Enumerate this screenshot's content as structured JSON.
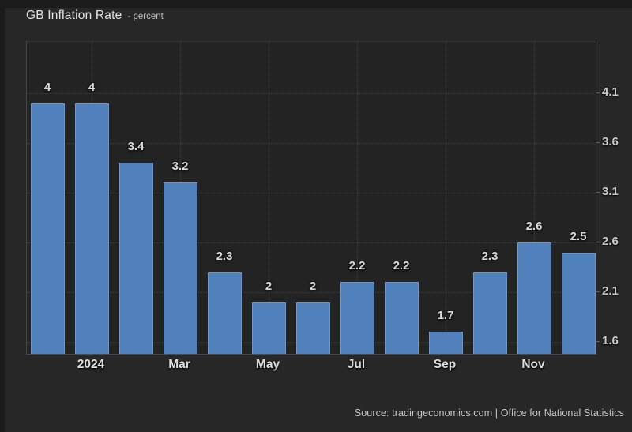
{
  "header": {
    "title": "GB Inflation Rate",
    "subtitle": "- percent"
  },
  "footer": {
    "source": "Source: tradingeconomics.com | Office for National Statistics"
  },
  "chart_data": {
    "type": "bar",
    "title": "GB Inflation Rate",
    "unit_label": "percent",
    "values": [
      4,
      4,
      3.4,
      3.2,
      2.3,
      2,
      2,
      2.2,
      2.2,
      1.7,
      2.3,
      2.6,
      2.5
    ],
    "bar_labels": [
      "4",
      "4",
      "3.4",
      "3.2",
      "2.3",
      "2",
      "2",
      "2.2",
      "2.2",
      "1.7",
      "2.3",
      "2.6",
      "2.5"
    ],
    "x_ticks": [
      {
        "bar_index": 1,
        "label": "2024"
      },
      {
        "bar_index": 3,
        "label": "Mar"
      },
      {
        "bar_index": 5,
        "label": "May"
      },
      {
        "bar_index": 7,
        "label": "Jul"
      },
      {
        "bar_index": 9,
        "label": "Sep"
      },
      {
        "bar_index": 11,
        "label": "Nov"
      }
    ],
    "y_ticks": [
      "4.1",
      "3.6",
      "3.1",
      "2.6",
      "2.1",
      "1.6"
    ],
    "ylim": [
      1.48,
      4.615
    ],
    "grid": true,
    "legend_position": "none",
    "bar_color": "#5081bd",
    "background_color": "#272727",
    "plot_background_color": "#232323"
  }
}
